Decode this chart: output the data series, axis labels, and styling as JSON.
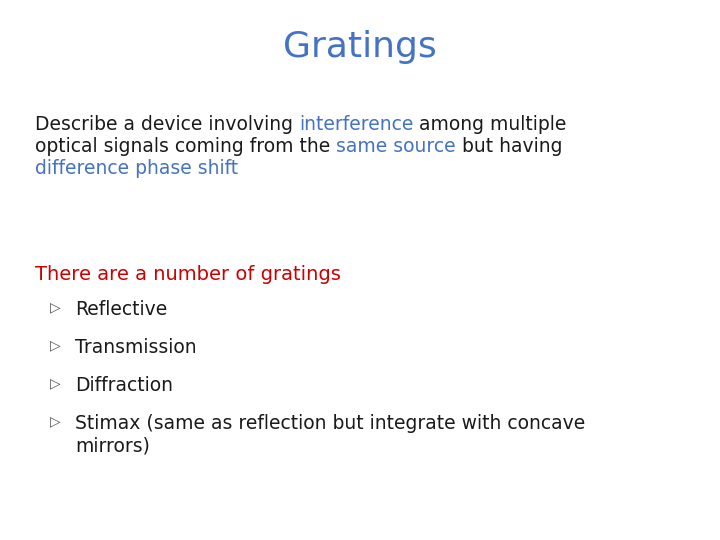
{
  "title": "Gratings",
  "title_color": "#4472C4",
  "title_fontsize": 26,
  "background_color": "#ffffff",
  "lines": [
    [
      {
        "text": "Describe a device involving ",
        "color": "#1a1a1a"
      },
      {
        "text": "interference",
        "color": "#4472C4"
      },
      {
        "text": " among multiple",
        "color": "#1a1a1a"
      }
    ],
    [
      {
        "text": "optical signals coming from the ",
        "color": "#1a1a1a"
      },
      {
        "text": "same source",
        "color": "#4472C4"
      },
      {
        "text": " but having",
        "color": "#1a1a1a"
      }
    ],
    [
      {
        "text": "difference phase shift",
        "color": "#4472C4"
      }
    ]
  ],
  "body_fontsize": 13.5,
  "body_font": "DejaVu Sans",
  "subheading": "There are a number of gratings",
  "subheading_color": "#CC0000",
  "subheading_fontsize": 14,
  "bullet_symbol": "▷",
  "bullet_items": [
    "Reflective",
    "Transmission",
    "Diffraction",
    "Stimax (same as reflection but integrate with concave"
  ],
  "bullet_item5_line2": "mirrors)",
  "bullet_color": "#1a1a1a",
  "bullet_fontsize": 13.5
}
